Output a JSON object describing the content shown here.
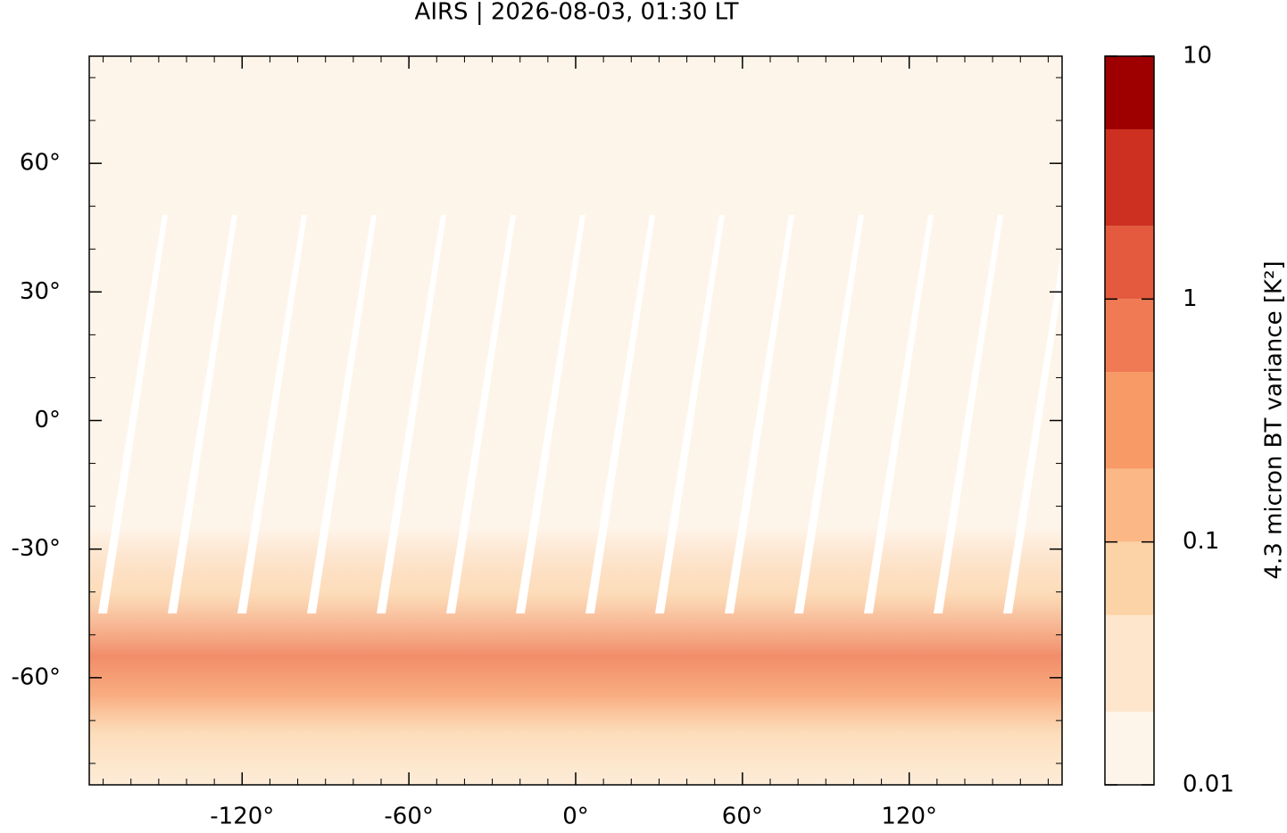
{
  "chart_data": {
    "type": "map",
    "title": "AIRS | 2026-08-03, 01:30 LT",
    "xlim": [
      -175,
      175
    ],
    "ylim": [
      -85,
      85
    ],
    "xticks": [
      {
        "value": -120,
        "label": "-120°"
      },
      {
        "value": -60,
        "label": "-60°"
      },
      {
        "value": 0,
        "label": "0°"
      },
      {
        "value": 60,
        "label": "60°"
      },
      {
        "value": 120,
        "label": "120°"
      }
    ],
    "yticks": [
      {
        "value": -60,
        "label": "-60°"
      },
      {
        "value": -30,
        "label": "-30°"
      },
      {
        "value": 0,
        "label": "0°"
      },
      {
        "value": 30,
        "label": "30°"
      },
      {
        "value": 60,
        "label": "60°"
      }
    ],
    "colorbar": {
      "label": "4.3 micron BT variance [K²]",
      "log": true,
      "lim": [
        0.01,
        10
      ],
      "levels": [
        0.01,
        0.02,
        0.05,
        0.1,
        0.2,
        0.5,
        1,
        2,
        5,
        10
      ],
      "colors": [
        "#fef5ea",
        "#fde6cc",
        "#fcd3a6",
        "#fbb886",
        "#f79a65",
        "#ef7a53",
        "#e45a3e",
        "#cd3020",
        "#9e0000"
      ],
      "ticks": [
        0.01,
        0.1,
        1,
        10
      ]
    }
  }
}
